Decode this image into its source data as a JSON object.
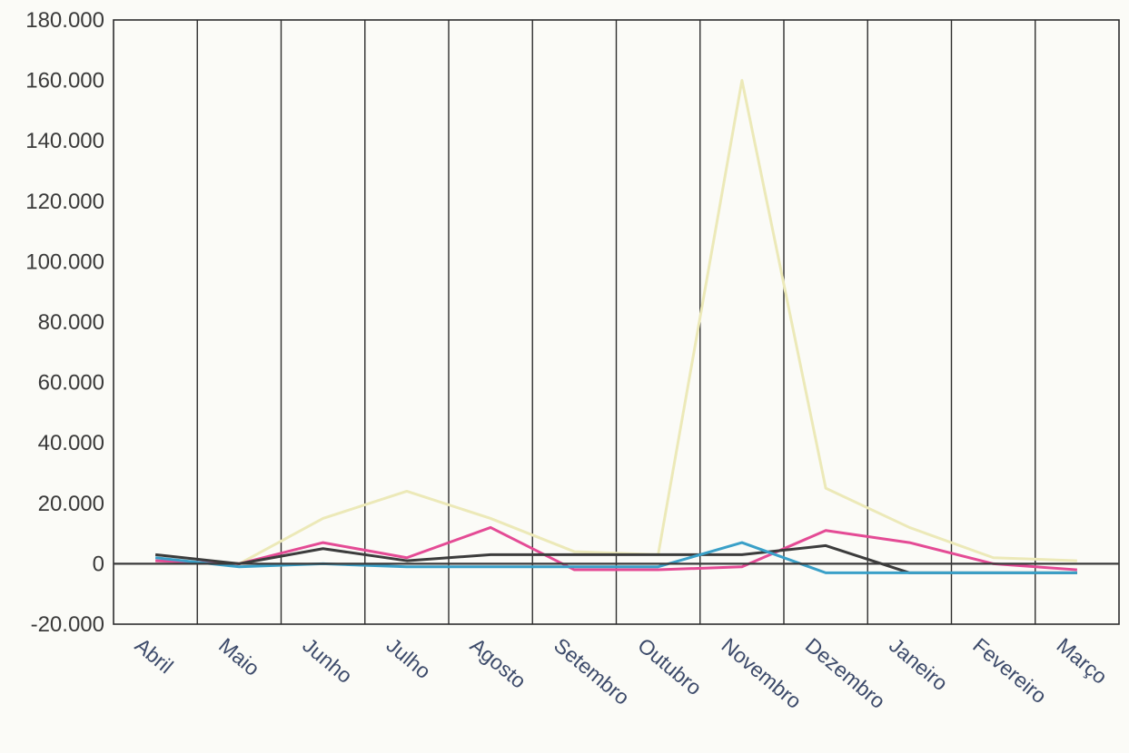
{
  "chart_data": {
    "type": "line",
    "categories": [
      "Abril",
      "Maio",
      "Junho",
      "Julho",
      "Agosto",
      "Setembro",
      "Outubro",
      "Novembro",
      "Dezembro",
      "Janeiro",
      "Fevereiro",
      "Março"
    ],
    "ylim": [
      -20000,
      180000
    ],
    "yticks": [
      180000,
      160000,
      140000,
      120000,
      100000,
      80000,
      60000,
      40000,
      20000,
      0,
      -20000
    ],
    "ytick_labels": [
      "180.000",
      "160.000",
      "140.000",
      "120.000",
      "100.000",
      "80.000",
      "60.000",
      "40.000",
      "20.000",
      "0",
      "-20.000"
    ],
    "grid": "vertical",
    "series": [
      {
        "color": "#ece9b8",
        "values": [
          1000,
          0,
          15000,
          24000,
          15000,
          4000,
          3000,
          160000,
          25000,
          12000,
          2000,
          1000
        ]
      },
      {
        "color": "#e44b95",
        "values": [
          1000,
          0,
          7000,
          2000,
          12000,
          -2000,
          -2000,
          -1000,
          11000,
          7000,
          0,
          -2000
        ]
      },
      {
        "color": "#3c3c3c",
        "values": [
          3000,
          0,
          5000,
          1000,
          3000,
          3000,
          3000,
          3000,
          6000,
          -3000,
          -3000,
          -3000
        ]
      },
      {
        "color": "#3aa0c8",
        "values": [
          2000,
          -1000,
          0,
          -1000,
          -1000,
          -1000,
          -1000,
          7000,
          -3000,
          -3000,
          -3000,
          -3000
        ]
      }
    ]
  }
}
